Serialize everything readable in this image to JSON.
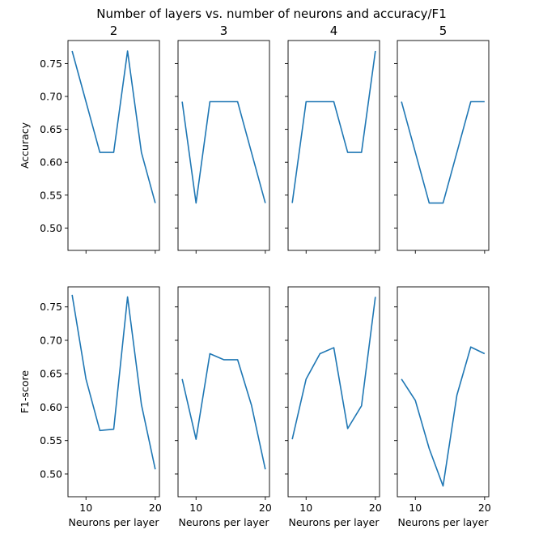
{
  "figure": {
    "title": "Number of layers vs. number of neurons and accuracy/F1"
  },
  "chart_data": {
    "type": "line",
    "title": "Number of layers vs. number of neurons and accuracy/F1",
    "line_color": "#1f77b4",
    "x": [
      8,
      10,
      12,
      14,
      16,
      18,
      20
    ],
    "xlabel": "Neurons per layer",
    "xticks": [
      10,
      20
    ],
    "xlim": [
      7.4,
      20.6
    ],
    "sharey": true,
    "sharex": true,
    "columns": [
      "2",
      "3",
      "4",
      "5"
    ],
    "rows": [
      {
        "ylabel": "Accuracy",
        "ylim": [
          0.466,
          0.785
        ],
        "yticks": [
          0.5,
          0.55,
          0.6,
          0.65,
          0.7,
          0.75
        ],
        "ytick_labels": [
          "0.50",
          "0.55",
          "0.60",
          "0.65",
          "0.70",
          "0.75"
        ],
        "panels": [
          {
            "title": "2",
            "values": [
              0.769,
              0.692,
              0.615,
              0.615,
              0.769,
              0.615,
              0.538
            ]
          },
          {
            "title": "3",
            "values": [
              0.692,
              0.538,
              0.692,
              0.692,
              0.692,
              0.615,
              0.538
            ]
          },
          {
            "title": "4",
            "values": [
              0.538,
              0.692,
              0.692,
              0.692,
              0.615,
              0.615,
              0.769
            ]
          },
          {
            "title": "5",
            "values": [
              0.692,
              0.615,
              0.538,
              0.538,
              0.615,
              0.692,
              0.692
            ]
          }
        ]
      },
      {
        "ylabel": "F1-score",
        "ylim": [
          0.466,
          0.78
        ],
        "yticks": [
          0.5,
          0.55,
          0.6,
          0.65,
          0.7,
          0.75
        ],
        "ytick_labels": [
          "0.50",
          "0.55",
          "0.60",
          "0.65",
          "0.70",
          "0.75"
        ],
        "panels": [
          {
            "title": "",
            "values": [
              0.768,
              0.642,
              0.565,
              0.567,
              0.765,
              0.604,
              0.507
            ]
          },
          {
            "title": "",
            "values": [
              0.642,
              0.552,
              0.68,
              0.671,
              0.671,
              0.603,
              0.507
            ]
          },
          {
            "title": "",
            "values": [
              0.552,
              0.642,
              0.68,
              0.689,
              0.568,
              0.602,
              0.765
            ]
          },
          {
            "title": "",
            "values": [
              0.642,
              0.61,
              0.538,
              0.482,
              0.618,
              0.69,
              0.68
            ]
          }
        ]
      }
    ]
  }
}
